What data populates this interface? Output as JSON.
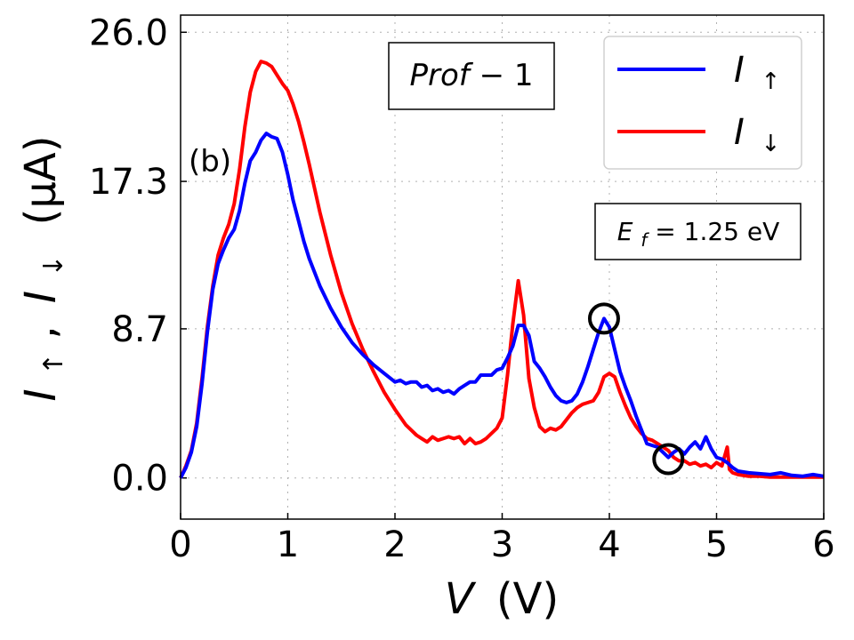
{
  "chart_data": {
    "type": "line",
    "title": "",
    "xlabel": "V (V)",
    "xlabel_var": "V",
    "xlabel_unit": "(V)",
    "ylabel": "I↑ , I↓ (μA)",
    "ylabel_parts": {
      "var1": "I",
      "sub1": "↑",
      "sep": " , ",
      "var2": "I",
      "sub2": "↓",
      "unit": "(μA)"
    },
    "xlim": [
      0,
      6
    ],
    "ylim": [
      -2.4,
      27.0
    ],
    "xticks": [
      0,
      1,
      2,
      3,
      4,
      5,
      6
    ],
    "xtick_labels": [
      "0",
      "1",
      "2",
      "3",
      "4",
      "5",
      "6"
    ],
    "yticks": [
      0.0,
      8.7,
      17.3,
      26.0
    ],
    "ytick_labels": [
      "0.0",
      "8.7",
      "17.3",
      "26.0"
    ],
    "grid": true,
    "legend_position": "top-right",
    "panel_label": "(b)",
    "profile_label": "Prof − 1",
    "profile_parts": {
      "name": "Prof",
      "sep": " − ",
      "num": "1"
    },
    "fermi_label": {
      "var": "E",
      "sub": "f",
      "rest": " = 1.25 eV"
    },
    "markers": [
      {
        "name": "circle-up-peak",
        "x": 3.95,
        "y": 9.3
      },
      {
        "name": "circle-down-dip",
        "x": 4.55,
        "y": 1.1
      }
    ],
    "series": [
      {
        "name": "I ↑",
        "legend_var": "I",
        "legend_sub": "↑",
        "color": "#0000ff",
        "points": [
          [
            0.0,
            0.0
          ],
          [
            0.05,
            0.6
          ],
          [
            0.1,
            1.5
          ],
          [
            0.15,
            3.0
          ],
          [
            0.2,
            5.5
          ],
          [
            0.25,
            8.5
          ],
          [
            0.3,
            11.0
          ],
          [
            0.35,
            12.5
          ],
          [
            0.4,
            13.3
          ],
          [
            0.45,
            14.0
          ],
          [
            0.5,
            14.5
          ],
          [
            0.55,
            15.6
          ],
          [
            0.6,
            17.2
          ],
          [
            0.65,
            18.5
          ],
          [
            0.7,
            19.0
          ],
          [
            0.75,
            19.7
          ],
          [
            0.8,
            20.1
          ],
          [
            0.85,
            19.9
          ],
          [
            0.9,
            19.8
          ],
          [
            0.95,
            19.0
          ],
          [
            1.0,
            17.7
          ],
          [
            1.05,
            16.2
          ],
          [
            1.1,
            15.0
          ],
          [
            1.15,
            13.8
          ],
          [
            1.2,
            12.8
          ],
          [
            1.3,
            11.2
          ],
          [
            1.4,
            9.9
          ],
          [
            1.5,
            8.8
          ],
          [
            1.6,
            7.9
          ],
          [
            1.7,
            7.2
          ],
          [
            1.8,
            6.6
          ],
          [
            1.9,
            6.1
          ],
          [
            2.0,
            5.6
          ],
          [
            2.05,
            5.7
          ],
          [
            2.1,
            5.5
          ],
          [
            2.15,
            5.6
          ],
          [
            2.2,
            5.6
          ],
          [
            2.25,
            5.3
          ],
          [
            2.3,
            5.4
          ],
          [
            2.35,
            5.1
          ],
          [
            2.4,
            5.2
          ],
          [
            2.45,
            5.0
          ],
          [
            2.5,
            5.1
          ],
          [
            2.55,
            4.9
          ],
          [
            2.6,
            5.2
          ],
          [
            2.65,
            5.4
          ],
          [
            2.7,
            5.6
          ],
          [
            2.75,
            5.6
          ],
          [
            2.8,
            6.0
          ],
          [
            2.85,
            6.0
          ],
          [
            2.9,
            6.0
          ],
          [
            2.95,
            6.3
          ],
          [
            3.0,
            6.4
          ],
          [
            3.05,
            7.0
          ],
          [
            3.1,
            7.7
          ],
          [
            3.15,
            8.9
          ],
          [
            3.2,
            8.9
          ],
          [
            3.25,
            8.3
          ],
          [
            3.3,
            6.8
          ],
          [
            3.35,
            6.4
          ],
          [
            3.4,
            5.9
          ],
          [
            3.45,
            5.3
          ],
          [
            3.5,
            4.8
          ],
          [
            3.55,
            4.5
          ],
          [
            3.6,
            4.4
          ],
          [
            3.65,
            4.5
          ],
          [
            3.7,
            4.9
          ],
          [
            3.75,
            5.6
          ],
          [
            3.8,
            6.5
          ],
          [
            3.85,
            7.5
          ],
          [
            3.9,
            8.5
          ],
          [
            3.95,
            9.3
          ],
          [
            4.0,
            8.8
          ],
          [
            4.05,
            7.5
          ],
          [
            4.1,
            6.2
          ],
          [
            4.15,
            5.3
          ],
          [
            4.2,
            4.5
          ],
          [
            4.25,
            3.6
          ],
          [
            4.3,
            2.8
          ],
          [
            4.35,
            2.0
          ],
          [
            4.4,
            1.9
          ],
          [
            4.45,
            1.8
          ],
          [
            4.5,
            1.5
          ],
          [
            4.55,
            1.2
          ],
          [
            4.6,
            1.5
          ],
          [
            4.65,
            1.7
          ],
          [
            4.7,
            1.4
          ],
          [
            4.75,
            1.8
          ],
          [
            4.8,
            2.1
          ],
          [
            4.85,
            1.7
          ],
          [
            4.9,
            2.4
          ],
          [
            4.95,
            1.7
          ],
          [
            5.0,
            1.2
          ],
          [
            5.05,
            1.1
          ],
          [
            5.1,
            0.9
          ],
          [
            5.15,
            0.6
          ],
          [
            5.2,
            0.4
          ],
          [
            5.3,
            0.3
          ],
          [
            5.4,
            0.25
          ],
          [
            5.5,
            0.2
          ],
          [
            5.6,
            0.3
          ],
          [
            5.7,
            0.15
          ],
          [
            5.8,
            0.1
          ],
          [
            5.9,
            0.2
          ],
          [
            6.0,
            0.1
          ]
        ]
      },
      {
        "name": "I ↓",
        "legend_var": "I",
        "legend_sub": "↓",
        "color": "#ff0000",
        "points": [
          [
            0.0,
            0.0
          ],
          [
            0.05,
            0.7
          ],
          [
            0.1,
            1.6
          ],
          [
            0.15,
            3.2
          ],
          [
            0.2,
            5.8
          ],
          [
            0.25,
            8.8
          ],
          [
            0.3,
            11.2
          ],
          [
            0.35,
            13.0
          ],
          [
            0.4,
            14.0
          ],
          [
            0.45,
            14.8
          ],
          [
            0.5,
            16.0
          ],
          [
            0.55,
            18.0
          ],
          [
            0.6,
            20.5
          ],
          [
            0.65,
            22.5
          ],
          [
            0.7,
            23.7
          ],
          [
            0.75,
            24.3
          ],
          [
            0.8,
            24.2
          ],
          [
            0.85,
            24.0
          ],
          [
            0.9,
            23.5
          ],
          [
            0.95,
            23.0
          ],
          [
            1.0,
            22.6
          ],
          [
            1.05,
            21.8
          ],
          [
            1.1,
            20.8
          ],
          [
            1.15,
            19.6
          ],
          [
            1.2,
            18.3
          ],
          [
            1.3,
            15.5
          ],
          [
            1.4,
            13.0
          ],
          [
            1.5,
            10.8
          ],
          [
            1.6,
            9.0
          ],
          [
            1.7,
            7.5
          ],
          [
            1.8,
            6.2
          ],
          [
            1.9,
            5.0
          ],
          [
            2.0,
            4.0
          ],
          [
            2.1,
            3.1
          ],
          [
            2.15,
            2.8
          ],
          [
            2.2,
            2.5
          ],
          [
            2.25,
            2.3
          ],
          [
            2.3,
            2.1
          ],
          [
            2.35,
            2.4
          ],
          [
            2.4,
            2.2
          ],
          [
            2.45,
            2.3
          ],
          [
            2.5,
            2.4
          ],
          [
            2.55,
            2.3
          ],
          [
            2.6,
            2.4
          ],
          [
            2.65,
            2.0
          ],
          [
            2.7,
            2.3
          ],
          [
            2.75,
            2.0
          ],
          [
            2.8,
            2.1
          ],
          [
            2.85,
            2.3
          ],
          [
            2.9,
            2.6
          ],
          [
            2.95,
            2.9
          ],
          [
            3.0,
            3.5
          ],
          [
            3.05,
            6.0
          ],
          [
            3.1,
            9.0
          ],
          [
            3.15,
            11.5
          ],
          [
            3.2,
            9.5
          ],
          [
            3.25,
            5.8
          ],
          [
            3.3,
            4.1
          ],
          [
            3.35,
            3.0
          ],
          [
            3.4,
            2.7
          ],
          [
            3.45,
            2.9
          ],
          [
            3.5,
            2.8
          ],
          [
            3.55,
            3.0
          ],
          [
            3.6,
            3.4
          ],
          [
            3.65,
            3.8
          ],
          [
            3.7,
            4.1
          ],
          [
            3.75,
            4.3
          ],
          [
            3.8,
            4.4
          ],
          [
            3.85,
            4.5
          ],
          [
            3.9,
            5.0
          ],
          [
            3.95,
            5.9
          ],
          [
            4.0,
            6.1
          ],
          [
            4.05,
            5.9
          ],
          [
            4.1,
            5.0
          ],
          [
            4.15,
            4.2
          ],
          [
            4.2,
            3.5
          ],
          [
            4.25,
            3.0
          ],
          [
            4.3,
            2.6
          ],
          [
            4.35,
            2.3
          ],
          [
            4.4,
            2.2
          ],
          [
            4.45,
            2.0
          ],
          [
            4.5,
            1.8
          ],
          [
            4.55,
            1.6
          ],
          [
            4.6,
            1.2
          ],
          [
            4.65,
            1.0
          ],
          [
            4.7,
            1.0
          ],
          [
            4.75,
            0.8
          ],
          [
            4.8,
            0.9
          ],
          [
            4.85,
            0.7
          ],
          [
            4.9,
            0.8
          ],
          [
            4.95,
            0.6
          ],
          [
            5.0,
            0.9
          ],
          [
            5.05,
            0.7
          ],
          [
            5.1,
            1.8
          ],
          [
            5.12,
            0.5
          ],
          [
            5.15,
            0.3
          ],
          [
            5.2,
            0.2
          ],
          [
            5.3,
            0.1
          ],
          [
            5.4,
            0.1
          ],
          [
            5.5,
            0.05
          ],
          [
            5.6,
            0.05
          ],
          [
            5.7,
            0.05
          ],
          [
            5.8,
            0.05
          ],
          [
            5.9,
            0.05
          ],
          [
            6.0,
            0.05
          ]
        ]
      }
    ]
  }
}
